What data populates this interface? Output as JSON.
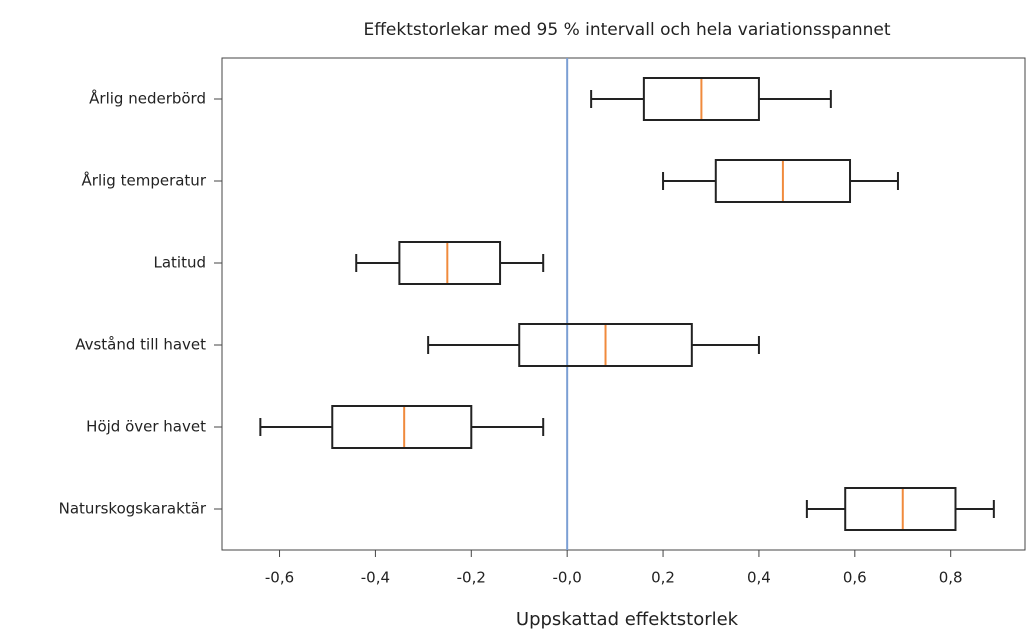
{
  "chart_data": {
    "type": "box",
    "title": "Effektstorlekar med 95 % intervall och hela variationsspannet",
    "xlabel": "Uppskattad effektstorlek",
    "categories": [
      "Årlig nederbörd",
      "Årlig temperatur",
      "Latitud",
      "Avstånd till havet",
      "Höjd över havet",
      "Naturskogskaraktär"
    ],
    "boxes": [
      {
        "whislo": 0.05,
        "q1": 0.16,
        "med": 0.28,
        "q3": 0.4,
        "whishi": 0.55
      },
      {
        "whislo": 0.2,
        "q1": 0.31,
        "med": 0.45,
        "q3": 0.59,
        "whishi": 0.69
      },
      {
        "whislo": -0.44,
        "q1": -0.35,
        "med": -0.25,
        "q3": -0.14,
        "whishi": -0.05
      },
      {
        "whislo": -0.29,
        "q1": -0.1,
        "med": 0.08,
        "q3": 0.26,
        "whishi": 0.4
      },
      {
        "whislo": -0.64,
        "q1": -0.49,
        "med": -0.34,
        "q3": -0.2,
        "whishi": -0.05
      },
      {
        "whislo": 0.5,
        "q1": 0.58,
        "med": 0.7,
        "q3": 0.81,
        "whishi": 0.89
      }
    ],
    "box_color": "#222222",
    "median_color": "#f08a3c",
    "reference_line": 0,
    "reference_color": "#7b9fd4",
    "xlim": [
      -0.72,
      0.955
    ],
    "xticks": [
      {
        "value": -0.6,
        "label": "-0,6"
      },
      {
        "value": -0.4,
        "label": "-0,4"
      },
      {
        "value": -0.2,
        "label": "-0,2"
      },
      {
        "value": 0,
        "label": "-0,0"
      },
      {
        "value": 0.2,
        "label": "0,2"
      },
      {
        "value": 0.4,
        "label": "0,4"
      },
      {
        "value": 0.6,
        "label": "0,6"
      },
      {
        "value": 0.8,
        "label": "0,8"
      }
    ]
  }
}
